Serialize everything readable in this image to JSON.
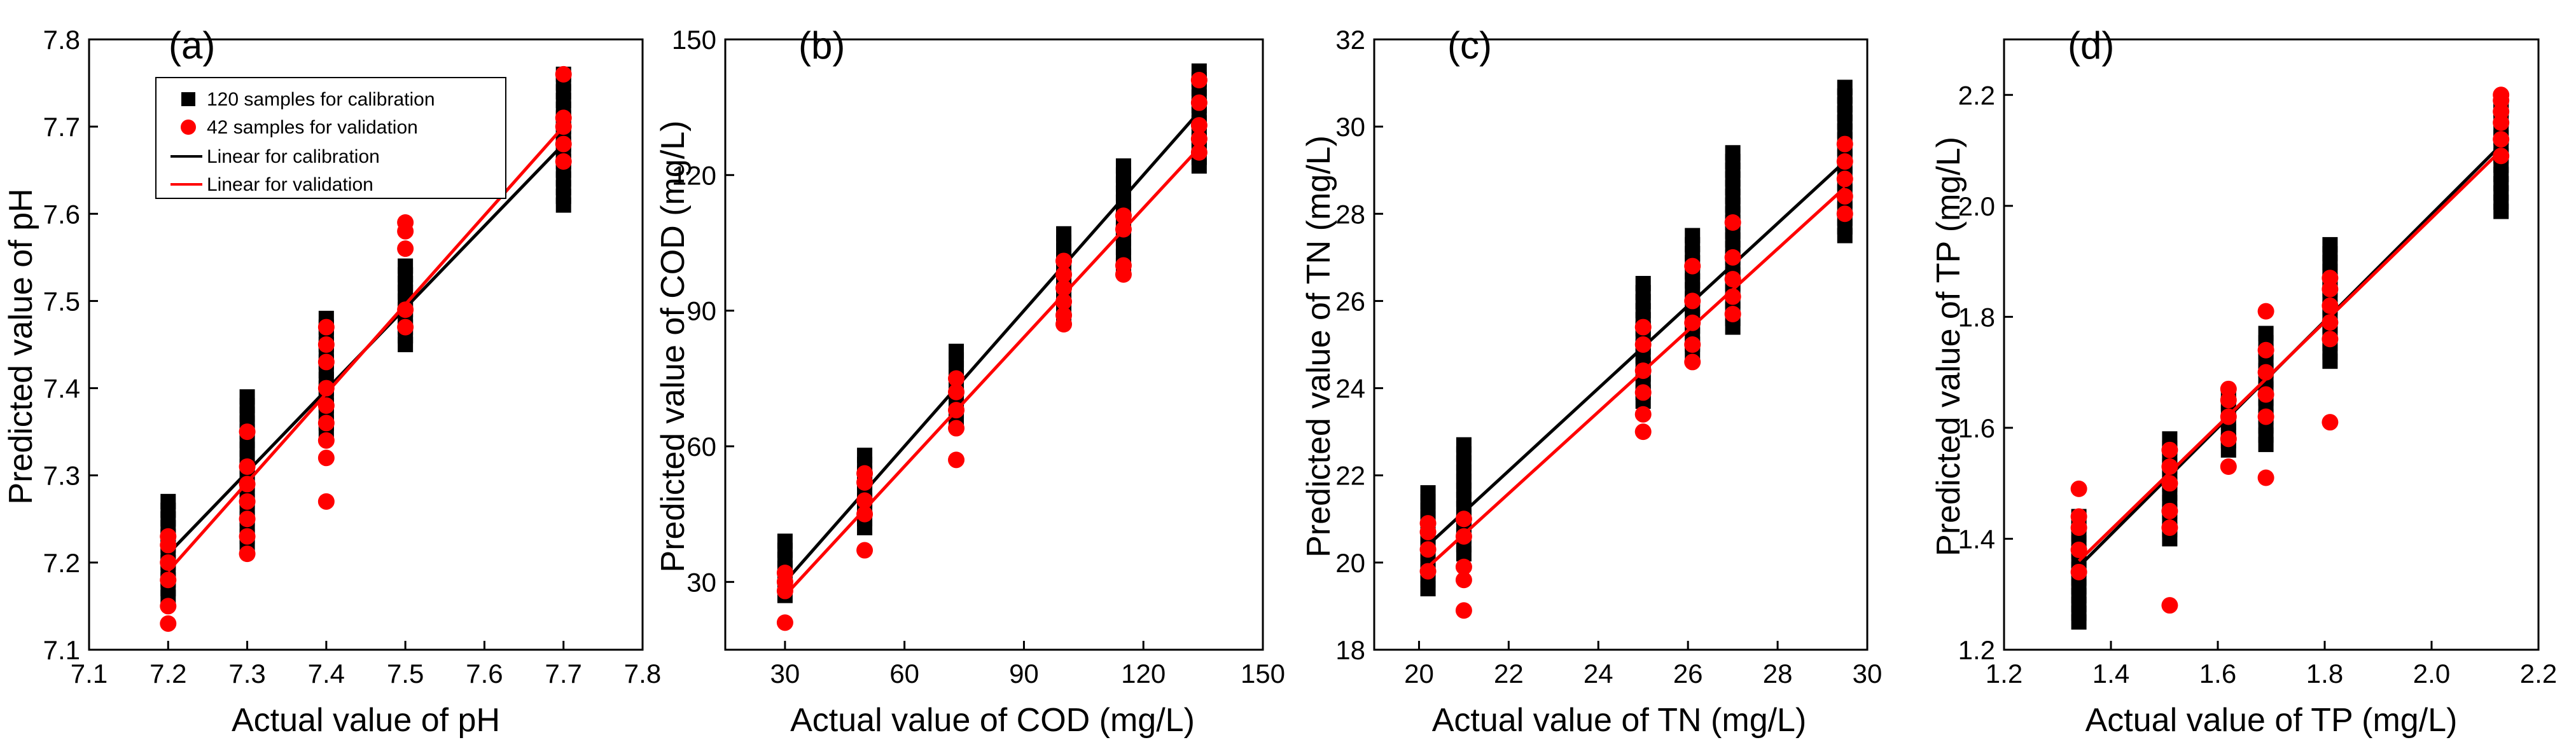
{
  "colors": {
    "calibration": "#000000",
    "validation": "#ff0000",
    "axis": "#000000",
    "background": "#ffffff"
  },
  "legend": {
    "items": [
      {
        "label": "120 samples for calibration",
        "kind": "square",
        "color": "#000000"
      },
      {
        "label": "42 samples for validation",
        "kind": "circle",
        "color": "#ff0000"
      },
      {
        "label": "Linear for calibration",
        "kind": "line",
        "color": "#000000"
      },
      {
        "label": "Linear for validation",
        "kind": "line",
        "color": "#ff0000"
      }
    ]
  },
  "chart_data": [
    {
      "type": "scatter",
      "panel": "(a)",
      "xlabel": "Actual value of pH",
      "ylabel": "Predicted value of pH",
      "xlim": [
        7.1,
        7.8
      ],
      "ylim": [
        7.1,
        7.8
      ],
      "xticks": [
        7.1,
        7.2,
        7.3,
        7.4,
        7.5,
        7.6,
        7.7,
        7.8
      ],
      "yticks": [
        7.1,
        7.2,
        7.3,
        7.4,
        7.5,
        7.6,
        7.7,
        7.8
      ],
      "xtick_labels": [
        "7.1",
        "7.2",
        "7.3",
        "7.4",
        "7.5",
        "7.6",
        "7.7",
        "7.8"
      ],
      "ytick_labels": [
        "7.1",
        "7.2",
        "7.3",
        "7.4",
        "7.5",
        "7.6",
        "7.7",
        "7.8"
      ],
      "calibration_columns": [
        {
          "x": 7.2,
          "ymin": 7.16,
          "ymax": 7.27
        },
        {
          "x": 7.3,
          "ymin": 7.22,
          "ymax": 7.39
        },
        {
          "x": 7.4,
          "ymin": 7.35,
          "ymax": 7.48
        },
        {
          "x": 7.5,
          "ymin": 7.45,
          "ymax": 7.54
        },
        {
          "x": 7.7,
          "ymin": 7.61,
          "ymax": 7.76
        }
      ],
      "validation_points": [
        {
          "x": 7.2,
          "ys": [
            7.13,
            7.15,
            7.18,
            7.2,
            7.22,
            7.23
          ]
        },
        {
          "x": 7.3,
          "ys": [
            7.21,
            7.23,
            7.25,
            7.27,
            7.29,
            7.31,
            7.35
          ]
        },
        {
          "x": 7.4,
          "ys": [
            7.27,
            7.32,
            7.34,
            7.36,
            7.38,
            7.4,
            7.43,
            7.45,
            7.47
          ]
        },
        {
          "x": 7.5,
          "ys": [
            7.47,
            7.49,
            7.56,
            7.58,
            7.59
          ]
        },
        {
          "x": 7.7,
          "ys": [
            7.66,
            7.68,
            7.7,
            7.71,
            7.76
          ]
        }
      ],
      "fit_calibration": [
        [
          7.2,
          7.21
        ],
        [
          7.7,
          7.68
        ]
      ],
      "fit_validation": [
        [
          7.2,
          7.19
        ],
        [
          7.7,
          7.7
        ]
      ]
    },
    {
      "type": "scatter",
      "panel": "(b)",
      "xlabel": "Actual value of COD (mg/L)",
      "ylabel": "Predicted value of COD  (mg/L)",
      "xlim": [
        15,
        150
      ],
      "ylim": [
        15,
        150
      ],
      "xticks": [
        30,
        60,
        90,
        120,
        150
      ],
      "yticks": [
        30,
        60,
        90,
        120,
        150
      ],
      "xtick_labels": [
        "30",
        "60",
        "90",
        "120",
        "150"
      ],
      "ytick_labels": [
        "30",
        "60",
        "90",
        "120",
        "150"
      ],
      "calibration_columns": [
        {
          "x": 30,
          "ymin": 27,
          "ymax": 39
        },
        {
          "x": 50,
          "ymin": 42,
          "ymax": 58
        },
        {
          "x": 73,
          "ymin": 66,
          "ymax": 81
        },
        {
          "x": 100,
          "ymin": 88,
          "ymax": 107
        },
        {
          "x": 115,
          "ymin": 100,
          "ymax": 122
        },
        {
          "x": 134,
          "ymin": 122,
          "ymax": 143
        }
      ],
      "validation_points": [
        {
          "x": 30,
          "ys": [
            21,
            28,
            30,
            32
          ]
        },
        {
          "x": 50,
          "ys": [
            37,
            45,
            48,
            52,
            54
          ]
        },
        {
          "x": 73,
          "ys": [
            57,
            64,
            68,
            72,
            75
          ]
        },
        {
          "x": 100,
          "ys": [
            87,
            89,
            92,
            95,
            98,
            101
          ]
        },
        {
          "x": 115,
          "ys": [
            98,
            100,
            108,
            111
          ]
        },
        {
          "x": 134,
          "ys": [
            125,
            128,
            131,
            136,
            141
          ]
        }
      ],
      "fit_calibration": [
        [
          30,
          30
        ],
        [
          134,
          134
        ]
      ],
      "fit_validation": [
        [
          30,
          27
        ],
        [
          134,
          126
        ]
      ]
    },
    {
      "type": "scatter",
      "panel": "(c)",
      "xlabel": "Actual value of TN (mg/L)",
      "ylabel": "Predicted value of TN (mg/L)",
      "xlim": [
        19,
        30
      ],
      "ylim": [
        18,
        32
      ],
      "xticks": [
        20,
        22,
        24,
        26,
        28,
        30
      ],
      "yticks": [
        18,
        20,
        22,
        24,
        26,
        28,
        30,
        32
      ],
      "xtick_labels": [
        "20",
        "22",
        "24",
        "26",
        "28",
        "30"
      ],
      "ytick_labels": [
        "18",
        "20",
        "22",
        "24",
        "26",
        "28",
        "30",
        "32"
      ],
      "calibration_columns": [
        {
          "x": 20.2,
          "ymin": 19.4,
          "ymax": 21.6
        },
        {
          "x": 21.0,
          "ymin": 20.2,
          "ymax": 22.7
        },
        {
          "x": 25.0,
          "ymin": 23.7,
          "ymax": 26.4
        },
        {
          "x": 26.1,
          "ymin": 24.8,
          "ymax": 27.5
        },
        {
          "x": 27.0,
          "ymin": 25.4,
          "ymax": 29.4
        },
        {
          "x": 29.5,
          "ymin": 27.5,
          "ymax": 30.9
        }
      ],
      "validation_points": [
        {
          "x": 20.2,
          "ys": [
            19.8,
            20.3,
            20.7,
            20.9
          ]
        },
        {
          "x": 21.0,
          "ys": [
            18.9,
            19.6,
            19.9,
            20.6,
            21.0
          ]
        },
        {
          "x": 25.0,
          "ys": [
            23.0,
            23.4,
            23.9,
            24.4,
            25.0,
            25.4
          ]
        },
        {
          "x": 26.1,
          "ys": [
            24.6,
            25.0,
            25.5,
            26.0,
            26.8
          ]
        },
        {
          "x": 27.0,
          "ys": [
            25.7,
            26.1,
            26.5,
            27.0,
            27.8
          ]
        },
        {
          "x": 29.5,
          "ys": [
            28.0,
            28.4,
            28.8,
            29.2,
            29.6
          ]
        }
      ],
      "fit_calibration": [
        [
          20.2,
          20.4
        ],
        [
          29.5,
          29.2
        ]
      ],
      "fit_validation": [
        [
          20.2,
          19.9
        ],
        [
          29.5,
          28.6
        ]
      ]
    },
    {
      "type": "scatter",
      "panel": "(d)",
      "xlabel": "Actual value of TP (mg/L)",
      "ylabel": "Predicted value of TP (mg/L)",
      "xlim": [
        1.2,
        2.2
      ],
      "ylim": [
        1.2,
        2.3
      ],
      "xticks": [
        1.2,
        1.4,
        1.6,
        1.8,
        2.0,
        2.2
      ],
      "yticks": [
        1.2,
        1.4,
        1.6,
        1.8,
        2.0,
        2.2
      ],
      "xtick_labels": [
        "1.2",
        "1.4",
        "1.6",
        "1.8",
        "2.0",
        "2.2"
      ],
      "ytick_labels": [
        "1.2",
        "1.4",
        "1.6",
        "1.8",
        "2.0",
        "2.2"
      ],
      "calibration_columns": [
        {
          "x": 1.34,
          "ymin": 1.25,
          "ymax": 1.44
        },
        {
          "x": 1.51,
          "ymin": 1.4,
          "ymax": 1.58
        },
        {
          "x": 1.62,
          "ymin": 1.56,
          "ymax": 1.66
        },
        {
          "x": 1.69,
          "ymin": 1.57,
          "ymax": 1.77
        },
        {
          "x": 1.81,
          "ymin": 1.72,
          "ymax": 1.93
        },
        {
          "x": 2.13,
          "ymin": 1.99,
          "ymax": 2.19
        }
      ],
      "validation_points": [
        {
          "x": 1.34,
          "ys": [
            1.34,
            1.38,
            1.42,
            1.44,
            1.49
          ]
        },
        {
          "x": 1.51,
          "ys": [
            1.28,
            1.42,
            1.45,
            1.5,
            1.53,
            1.56
          ]
        },
        {
          "x": 1.62,
          "ys": [
            1.53,
            1.58,
            1.62,
            1.65,
            1.67
          ]
        },
        {
          "x": 1.69,
          "ys": [
            1.51,
            1.62,
            1.66,
            1.7,
            1.74,
            1.81
          ]
        },
        {
          "x": 1.81,
          "ys": [
            1.61,
            1.76,
            1.79,
            1.82,
            1.85,
            1.87
          ]
        },
        {
          "x": 2.13,
          "ys": [
            2.09,
            2.12,
            2.15,
            2.17,
            2.19,
            2.2
          ]
        }
      ],
      "fit_calibration": [
        [
          1.34,
          1.35
        ],
        [
          2.13,
          2.11
        ]
      ],
      "fit_validation": [
        [
          1.34,
          1.36
        ],
        [
          2.13,
          2.1
        ]
      ]
    }
  ]
}
